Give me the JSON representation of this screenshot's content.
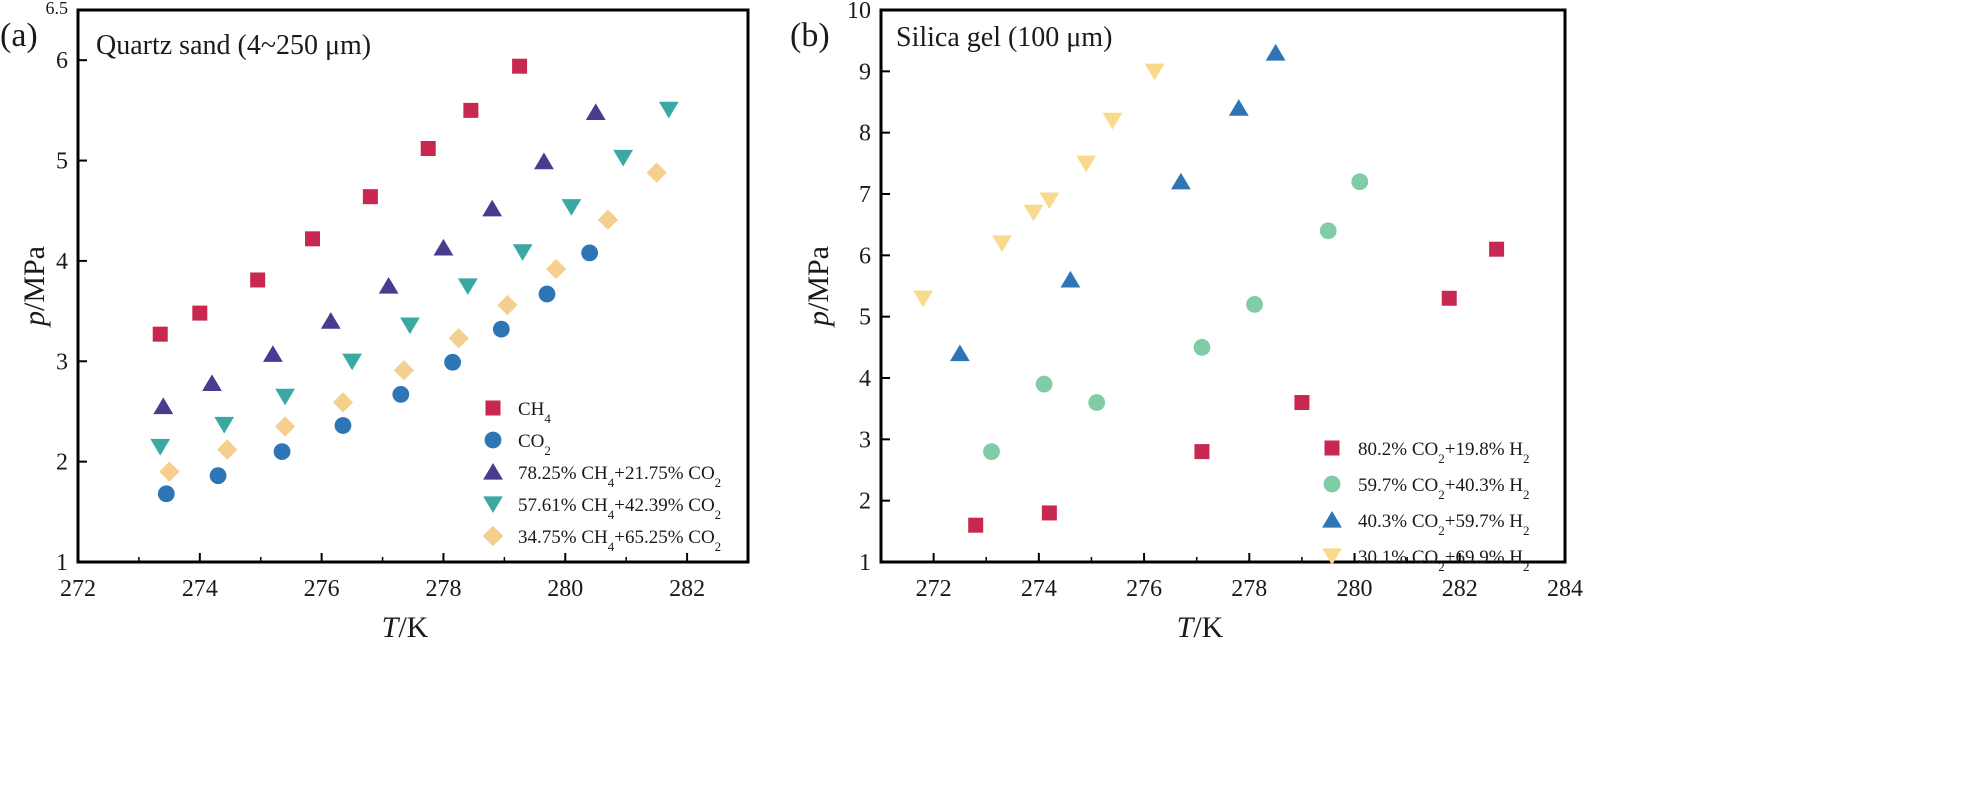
{
  "chart_data": [
    {
      "type": "scatter",
      "panel_label": "(a)",
      "title": "Quartz sand (4~250 μm)",
      "xlabel_italic": "T",
      "xlabel_rest": "/K",
      "ylabel_italic": "p",
      "ylabel_rest": "/MPa",
      "xlim": [
        272,
        283
      ],
      "ylim": [
        1,
        6.5
      ],
      "xticks": [
        272,
        274,
        276,
        278,
        280,
        282
      ],
      "yticks": [
        1,
        2,
        3,
        4,
        5,
        6,
        6.5
      ],
      "ytick_labels": [
        "1",
        "2",
        "3",
        "4",
        "5",
        "6",
        "6.5"
      ],
      "grid": false,
      "legend_position": "bottom-right",
      "series": [
        {
          "name_parts": [
            "CH",
            "4",
            ""
          ],
          "marker": "square",
          "color": "#c8284f",
          "x": [
            273.35,
            274.0,
            274.95,
            275.85,
            276.8,
            277.75,
            278.45,
            279.25
          ],
          "y": [
            3.27,
            3.48,
            3.81,
            4.22,
            4.64,
            5.12,
            5.5,
            5.94
          ]
        },
        {
          "name_parts": [
            "CO",
            "2",
            ""
          ],
          "marker": "circle",
          "color": "#2e75b6",
          "x": [
            273.45,
            274.3,
            275.35,
            276.35,
            277.3,
            278.15,
            278.95,
            279.7,
            280.4
          ],
          "y": [
            1.68,
            1.86,
            2.1,
            2.36,
            2.67,
            2.99,
            3.32,
            3.67,
            4.08
          ]
        },
        {
          "name_parts": [
            "78.25% CH",
            "4",
            "+21.75% CO",
            "2",
            ""
          ],
          "marker": "triangle-up",
          "color": "#4b3a8f",
          "x": [
            273.4,
            274.2,
            275.2,
            276.15,
            277.1,
            278.0,
            278.8,
            279.65,
            280.5
          ],
          "y": [
            2.55,
            2.78,
            3.07,
            3.4,
            3.75,
            4.13,
            4.52,
            4.99,
            5.48
          ]
        },
        {
          "name_parts": [
            "57.61% CH",
            "4",
            "+42.39% CO",
            "2",
            ""
          ],
          "marker": "triangle-down",
          "color": "#3aa9a4",
          "x": [
            273.35,
            274.4,
            275.4,
            276.5,
            277.45,
            278.4,
            279.3,
            280.1,
            280.95,
            281.7
          ],
          "y": [
            2.15,
            2.37,
            2.65,
            3.0,
            3.36,
            3.75,
            4.09,
            4.54,
            5.03,
            5.51
          ]
        },
        {
          "name_parts": [
            "34.75% CH",
            "4",
            "+65.25% CO",
            "2",
            ""
          ],
          "marker": "diamond",
          "color": "#f5cf8e",
          "x": [
            273.5,
            274.45,
            275.4,
            276.35,
            277.35,
            278.25,
            279.05,
            279.85,
            280.7,
            281.5
          ],
          "y": [
            1.9,
            2.12,
            2.35,
            2.59,
            2.91,
            3.23,
            3.56,
            3.92,
            4.41,
            4.88
          ]
        }
      ]
    },
    {
      "type": "scatter",
      "panel_label": "(b)",
      "title": "Silica gel (100 μm)",
      "xlabel_italic": "T",
      "xlabel_rest": "/K",
      "ylabel_italic": "p",
      "ylabel_rest": "/MPa",
      "xlim": [
        271,
        284
      ],
      "ylim": [
        1,
        10
      ],
      "xticks": [
        272,
        274,
        276,
        278,
        280,
        282,
        284
      ],
      "yticks": [
        1,
        2,
        3,
        4,
        5,
        6,
        7,
        8,
        9,
        10
      ],
      "ytick_labels": [
        "1",
        "2",
        "3",
        "4",
        "5",
        "6",
        "7",
        "8",
        "9",
        "10"
      ],
      "grid": false,
      "legend_position": "bottom-right",
      "series": [
        {
          "name_parts": [
            "80.2% CO",
            "2",
            "+19.8% H",
            "2",
            ""
          ],
          "marker": "square",
          "color": "#c8284f",
          "x": [
            272.8,
            274.2,
            277.1,
            279.0,
            281.8,
            282.7
          ],
          "y": [
            1.6,
            1.8,
            2.8,
            3.6,
            5.3,
            6.1
          ]
        },
        {
          "name_parts": [
            "59.7% CO",
            "2",
            "+40.3% H",
            "2",
            ""
          ],
          "marker": "circle",
          "color": "#7fcca6",
          "x": [
            273.1,
            274.1,
            275.1,
            277.1,
            278.1,
            279.5,
            280.1
          ],
          "y": [
            2.8,
            3.9,
            3.6,
            4.5,
            5.2,
            6.4,
            7.2
          ]
        },
        {
          "name_parts": [
            "40.3% CO",
            "2",
            "+59.7% H",
            "2",
            ""
          ],
          "marker": "triangle-up",
          "color": "#2e75b6",
          "x": [
            272.5,
            274.6,
            276.7,
            277.8,
            278.5
          ],
          "y": [
            4.4,
            5.6,
            7.2,
            8.4,
            9.3
          ]
        },
        {
          "name_parts": [
            "30.1% CO",
            "2",
            "+69.9% H",
            "2",
            ""
          ],
          "marker": "triangle-down",
          "color": "#f9d98b",
          "x": [
            271.8,
            273.3,
            273.9,
            274.2,
            274.9,
            275.4,
            276.2
          ],
          "y": [
            5.3,
            6.2,
            6.7,
            6.9,
            7.5,
            8.2,
            9.0
          ]
        }
      ]
    }
  ]
}
